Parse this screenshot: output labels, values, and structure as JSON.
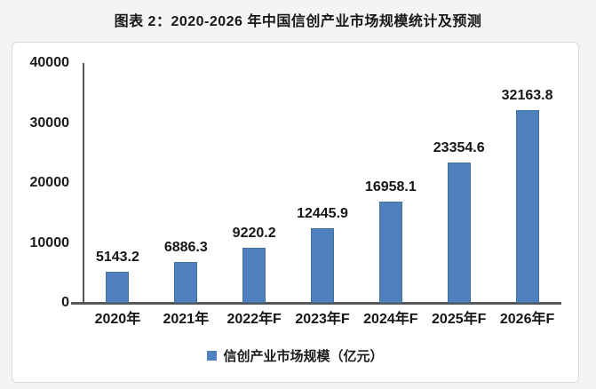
{
  "chart_data": {
    "type": "bar",
    "title": "图表 2：2020-2026 年中国信创产业市场规模统计及预测",
    "categories": [
      "2020年",
      "2021年",
      "2022年F",
      "2023年F",
      "2024年F",
      "2025年F",
      "2026年F"
    ],
    "values": [
      5143.2,
      6886.3,
      9220.2,
      12445.9,
      16958.1,
      23354.6,
      32163.8
    ],
    "value_labels": [
      "5143.2",
      "6886.3",
      "9220.2",
      "12445.9",
      "16958.1",
      "23354.6",
      "32163.8"
    ],
    "legend": [
      {
        "label": "信创产业市场规模（亿元）",
        "color": "#4e81bd"
      }
    ],
    "legend_position": "bottom",
    "xlabel": "",
    "ylabel": "",
    "ylim": [
      0,
      40000
    ],
    "yticks": [
      0,
      10000,
      20000,
      30000,
      40000
    ],
    "ytick_labels": [
      "0",
      "10000",
      "20000",
      "30000",
      "40000"
    ],
    "grid": false,
    "bar_color": "#4e81bd",
    "bar_border_color": "#41719c",
    "axis_color": "#575757",
    "text_color": "#1b1b1b",
    "panel_background": "#ffffff",
    "page_background": "#f4f4f2"
  }
}
